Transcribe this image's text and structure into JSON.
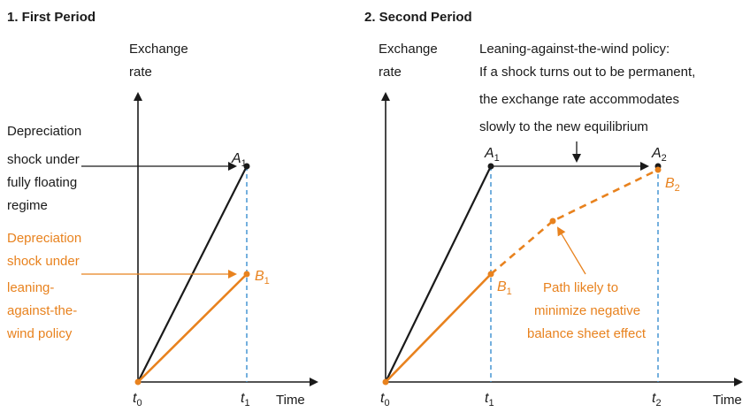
{
  "colors": {
    "black": "#1a1a1a",
    "orange": "#e8821e",
    "dashed_blue": "#3a8fd0"
  },
  "panel1": {
    "title": "1. First Period",
    "y_axis_label_line1": "Exchange",
    "y_axis_label_line2": "rate",
    "x_axis_label": "Time",
    "t0_label": "t",
    "t0_sub": "0",
    "t1_label": "t",
    "t1_sub": "1",
    "point_a1": "A",
    "point_a1_sub": "1",
    "point_b1": "B",
    "point_b1_sub": "1",
    "float_label_lines": [
      "Depreciation",
      "shock under",
      "fully floating",
      "regime"
    ],
    "lean_label_lines": [
      "Depreciation",
      "shock under",
      "leaning-",
      "against-the-",
      "wind policy"
    ]
  },
  "panel2": {
    "title": "2. Second Period",
    "y_axis_label_line1": "Exchange",
    "y_axis_label_line2": "rate",
    "x_axis_label": "Time",
    "t0_label": "t",
    "t0_sub": "0",
    "t1_label": "t",
    "t1_sub": "1",
    "t2_label": "t",
    "t2_sub": "2",
    "point_a1": "A",
    "point_a1_sub": "1",
    "point_a2": "A",
    "point_a2_sub": "2",
    "point_b1": "B",
    "point_b1_sub": "1",
    "point_b2": "B",
    "point_b2_sub": "2",
    "policy_lines": [
      "Leaning-against-the-wind policy:",
      "If a shock turns out to be permanent,",
      "the exchange rate accommodates",
      "slowly to the new equilibrium"
    ],
    "path_lines": [
      "Path likely to",
      "minimize negative",
      "balance sheet effect"
    ]
  }
}
